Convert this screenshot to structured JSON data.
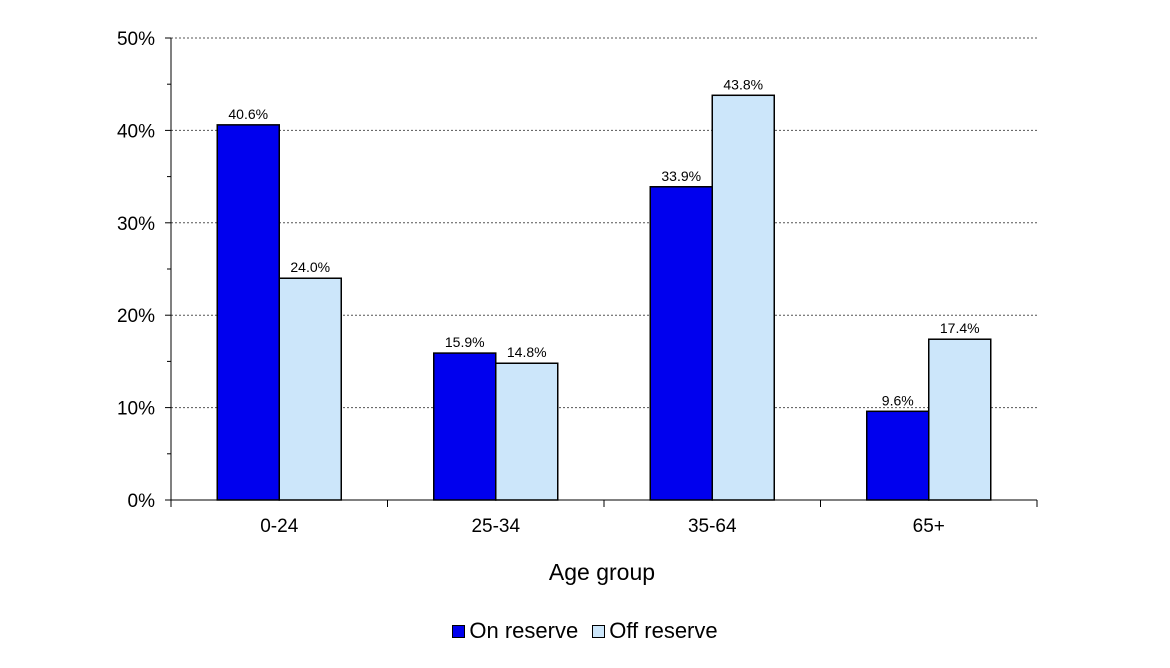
{
  "chart_data": {
    "type": "bar",
    "categories": [
      "0-24",
      "25-34",
      "35-64",
      "65+"
    ],
    "series": [
      {
        "name": "On reserve",
        "color": "#0000ee",
        "values": [
          40.6,
          15.9,
          33.9,
          9.6
        ],
        "data_labels": [
          "40.6%",
          "15.9%",
          "33.9%",
          "9.6%"
        ]
      },
      {
        "name": "Off reserve",
        "color": "#cce6fa",
        "values": [
          24.0,
          14.8,
          43.8,
          17.4
        ],
        "data_labels": [
          "24.0%",
          "14.8%",
          "43.8%",
          "17.4%"
        ]
      }
    ],
    "xlabel": "Age group",
    "ylabel": "",
    "ylim": [
      0,
      50
    ],
    "yticks": [
      0,
      10,
      20,
      30,
      40,
      50
    ],
    "ytick_labels": [
      "0%",
      "10%",
      "20%",
      "30%",
      "40%",
      "50%"
    ],
    "grid": true,
    "legend_position": "bottom"
  }
}
